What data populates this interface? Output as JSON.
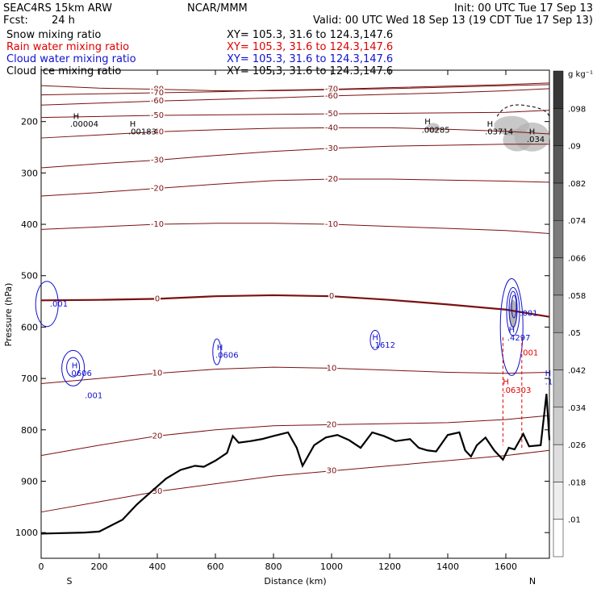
{
  "header": {
    "model": "SEAC4RS 15km ARW",
    "org": "NCAR/MMM",
    "init": "Init: 00 UTC Tue 17 Sep 13",
    "fcst_label": "Fcst:",
    "fcst_value": "24 h",
    "valid": "Valid: 00 UTC Wed 18 Sep 13 (19 CDT Tue 17 Sep 13)",
    "fields": [
      {
        "name": "Snow mixing ratio",
        "xy": "XY= 105.3, 31.6 to 124.3,147.6",
        "color": "#000000"
      },
      {
        "name": "Rain water mixing ratio",
        "xy": "XY= 105.3, 31.6 to 124.3,147.6",
        "color": "#e00000"
      },
      {
        "name": "Cloud water mixing ratio",
        "xy": "XY= 105.3, 31.6 to 124.3,147.6",
        "color": "#1010d0"
      },
      {
        "name": "Cloud ice mixing ratio",
        "xy": "XY= 105.3, 31.6 to 124.3,147.6",
        "color": "#000000"
      }
    ]
  },
  "chart_data": {
    "type": "contour",
    "xlabel": "Distance (km)",
    "ylabel": "Pressure (hPa)",
    "xlim": [
      0,
      1750
    ],
    "ylim": [
      1050,
      100
    ],
    "x_ticks": [
      0,
      200,
      400,
      600,
      800,
      1000,
      1200,
      1400,
      1600
    ],
    "y_ticks": [
      200,
      300,
      400,
      500,
      600,
      700,
      800,
      900,
      1000
    ],
    "endpoints": {
      "left": "S",
      "right": "N"
    },
    "colorbar": {
      "unit": "g kg⁻¹",
      "ticks": [
        ".01",
        ".018",
        ".026",
        ".034",
        ".042",
        ".05",
        ".058",
        ".066",
        ".074",
        ".082",
        ".09",
        ".098"
      ]
    },
    "isotherms": [
      {
        "label": "-80",
        "p": [
          130,
          135,
          137,
          140,
          140,
          138,
          136,
          133,
          130,
          128
        ]
      },
      {
        "label": "-70",
        "p": [
          148,
          146,
          144,
          142,
          139,
          137,
          134,
          131,
          128,
          125
        ]
      },
      {
        "label": "-60",
        "p": [
          168,
          164,
          160,
          157,
          154,
          150,
          147,
          144,
          140,
          136
        ]
      },
      {
        "label": "-50",
        "p": [
          192,
          190,
          188,
          187,
          186,
          185,
          184,
          183,
          182,
          178
        ]
      },
      {
        "label": "-40",
        "p": [
          232,
          226,
          220,
          216,
          213,
          212,
          212,
          215,
          219,
          224
        ]
      },
      {
        "label": "-30",
        "p": [
          290,
          282,
          275,
          266,
          258,
          252,
          248,
          246,
          244,
          244
        ]
      },
      {
        "label": "-20",
        "p": [
          345,
          338,
          330,
          322,
          315,
          312,
          312,
          314,
          316,
          318
        ]
      },
      {
        "label": "-10",
        "p": [
          410,
          405,
          400,
          398,
          398,
          400,
          404,
          408,
          412,
          418
        ]
      },
      {
        "label": "0",
        "p": [
          548,
          547,
          545,
          540,
          538,
          540,
          547,
          556,
          566,
          580
        ]
      },
      {
        "label": "10",
        "p": [
          710,
          700,
          690,
          682,
          678,
          680,
          684,
          688,
          690,
          688
        ]
      },
      {
        "label": "20",
        "p": [
          850,
          830,
          812,
          800,
          792,
          790,
          788,
          786,
          780,
          772
        ]
      },
      {
        "label": "30",
        "p": [
          960,
          940,
          920,
          905,
          890,
          880,
          870,
          860,
          850,
          840
        ]
      }
    ],
    "iso_x": [
      0,
      200,
      400,
      600,
      800,
      1000,
      1200,
      1400,
      1600,
      1750
    ],
    "terrain": {
      "x": [
        0,
        150,
        200,
        280,
        330,
        380,
        430,
        480,
        530,
        560,
        600,
        640,
        660,
        680,
        720,
        760,
        800,
        850,
        880,
        900,
        940,
        980,
        1020,
        1060,
        1100,
        1140,
        1180,
        1220,
        1270,
        1300,
        1330,
        1360,
        1400,
        1440,
        1460,
        1480,
        1500,
        1530,
        1560,
        1590,
        1610,
        1630,
        1660,
        1680,
        1720,
        1740,
        1750
      ],
      "p": [
        1002,
        1000,
        998,
        975,
        945,
        920,
        895,
        878,
        870,
        872,
        860,
        845,
        812,
        825,
        822,
        818,
        812,
        805,
        835,
        870,
        830,
        815,
        810,
        820,
        835,
        805,
        812,
        822,
        818,
        835,
        840,
        842,
        810,
        805,
        840,
        852,
        830,
        815,
        840,
        858,
        835,
        838,
        808,
        832,
        830,
        730,
        820
      ]
    },
    "labels": [
      {
        "text": "H",
        "x": 110,
        "p": 195,
        "color": "#000000"
      },
      {
        "text": ".00004",
        "x": 100,
        "p": 210,
        "color": "#000000"
      },
      {
        "text": "H",
        "x": 305,
        "p": 210,
        "color": "#000000"
      },
      {
        "text": ".00183",
        "x": 300,
        "p": 225,
        "color": "#000000"
      },
      {
        "text": "H",
        "x": 1320,
        "p": 205,
        "color": "#000000"
      },
      {
        "text": ".00285",
        "x": 1310,
        "p": 222,
        "color": "#000000"
      },
      {
        "text": "H",
        "x": 1535,
        "p": 210,
        "color": "#000000"
      },
      {
        "text": ".03714",
        "x": 1528,
        "p": 225,
        "color": "#000000"
      },
      {
        "text": "H",
        "x": 1680,
        "p": 225,
        "color": "#000000"
      },
      {
        "text": ".034",
        "x": 1672,
        "p": 240,
        "color": "#000000"
      },
      {
        "text": "H",
        "x": 605,
        "p": 645,
        "color": "#1010d0"
      },
      {
        "text": ".0606",
        "x": 600,
        "p": 660,
        "color": "#1010d0"
      },
      {
        "text": "H",
        "x": 1140,
        "p": 625,
        "color": "#1010d0"
      },
      {
        "text": ".1612",
        "x": 1140,
        "p": 640,
        "color": "#1010d0"
      },
      {
        "text": "H",
        "x": 1610,
        "p": 610,
        "color": "#1010d0"
      },
      {
        "text": ".4297",
        "x": 1605,
        "p": 626,
        "color": "#1010d0"
      },
      {
        "text": ".001",
        "x": 1648,
        "p": 578,
        "color": "#1010d0"
      },
      {
        "text": ".001",
        "x": 1650,
        "p": 655,
        "color": "#e00000"
      },
      {
        "text": ".001",
        "x": 30,
        "p": 560,
        "color": "#1010d0"
      },
      {
        "text": "H",
        "x": 105,
        "p": 680,
        "color": "#1010d0"
      },
      {
        "text": ".0606",
        "x": 95,
        "p": 695,
        "color": "#1010d0"
      },
      {
        "text": ".001",
        "x": 150,
        "p": 738,
        "color": "#1010d0"
      },
      {
        "text": "H",
        "x": 1735,
        "p": 695,
        "color": "#1010d0"
      },
      {
        "text": ".153",
        "x": 1735,
        "p": 712,
        "color": "#1010d0"
      },
      {
        "text": "H",
        "x": 1590,
        "p": 712,
        "color": "#e00000"
      },
      {
        "text": ".06303",
        "x": 1590,
        "p": 728,
        "color": "#e00000"
      }
    ]
  }
}
